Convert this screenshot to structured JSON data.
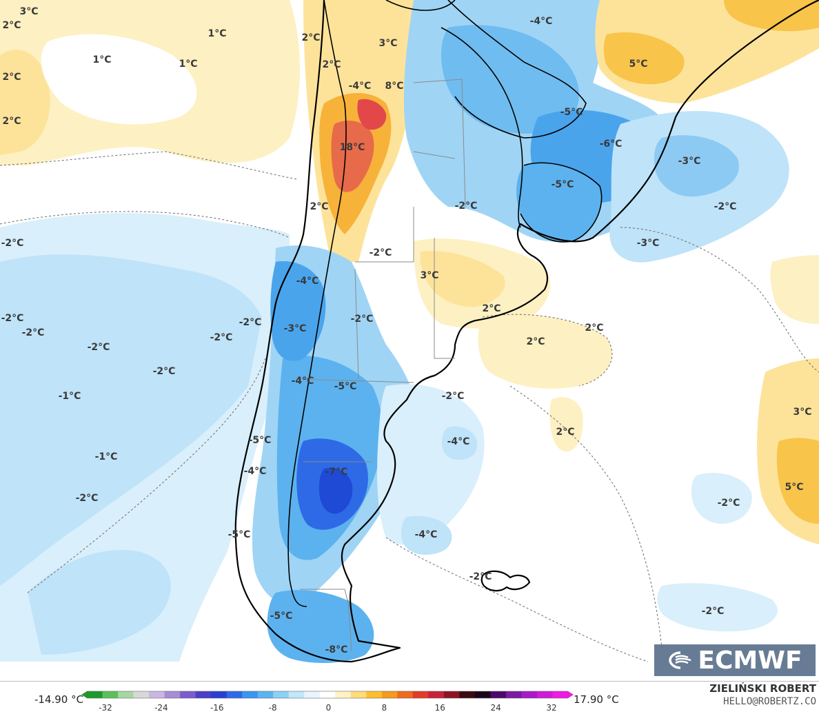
{
  "map": {
    "labels": [
      {
        "text": "3°C"
      },
      {
        "text": "2°C"
      },
      {
        "text": "1°C"
      },
      {
        "text": "1°C"
      },
      {
        "text": "1°C"
      },
      {
        "text": "2°C"
      },
      {
        "text": "2°C"
      },
      {
        "text": "2°C"
      },
      {
        "text": "3°C"
      },
      {
        "text": "2°C"
      },
      {
        "text": "-4°C"
      },
      {
        "text": "8°C"
      },
      {
        "text": "-4°C"
      },
      {
        "text": "5°C"
      },
      {
        "text": "-5°C"
      },
      {
        "text": "18°C"
      },
      {
        "text": "-6°C"
      },
      {
        "text": "-3°C"
      },
      {
        "text": "-5°C"
      },
      {
        "text": "2°C"
      },
      {
        "text": "-2°C"
      },
      {
        "text": "-2°C"
      },
      {
        "text": "-2°C"
      },
      {
        "text": "-3°C"
      },
      {
        "text": "-2°C"
      },
      {
        "text": "3°C"
      },
      {
        "text": "-4°C"
      },
      {
        "text": "2°C"
      },
      {
        "text": "-2°C"
      },
      {
        "text": "-2°C"
      },
      {
        "text": "-2°C"
      },
      {
        "text": "-2°C"
      },
      {
        "text": "-3°C"
      },
      {
        "text": "2°C"
      },
      {
        "text": "2°C"
      },
      {
        "text": "-2°C"
      },
      {
        "text": "-2°C"
      },
      {
        "text": "-4°C"
      },
      {
        "text": "-5°C"
      },
      {
        "text": "-2°C"
      },
      {
        "text": "-2°C"
      },
      {
        "text": "-1°C"
      },
      {
        "text": "3°C"
      },
      {
        "text": "-5°C"
      },
      {
        "text": "2°C"
      },
      {
        "text": "-4°C"
      },
      {
        "text": "-1°C"
      },
      {
        "text": "-4°C"
      },
      {
        "text": "-7°C"
      },
      {
        "text": "-2°C"
      },
      {
        "text": "5°C"
      },
      {
        "text": "-2°C"
      },
      {
        "text": "-5°C"
      },
      {
        "text": "-4°C"
      },
      {
        "text": "-2°C"
      },
      {
        "text": "-2°C"
      },
      {
        "text": "-5°C"
      },
      {
        "text": "-8°C"
      }
    ]
  },
  "logo": {
    "text": "ECMWF"
  },
  "colorbar": {
    "min_label": "-14.90 °C",
    "max_label": "17.90 °C",
    "ticks": [
      "-32",
      "-24",
      "-16",
      "-8",
      "0",
      "8",
      "16",
      "24",
      "32"
    ],
    "colors": [
      "#1e9a2c",
      "#5cc05a",
      "#a5d7a0",
      "#d8d8d8",
      "#c8b8e0",
      "#a78cd6",
      "#7b5ccc",
      "#4b3ec8",
      "#2a3fd2",
      "#2e6ae6",
      "#3a95f0",
      "#5ab4f2",
      "#8cd0f6",
      "#c2e6fa",
      "#e8f5fd",
      "#ffffff",
      "#fff2c4",
      "#ffdc7a",
      "#ffbe2e",
      "#f59a1e",
      "#ee6a1c",
      "#e23c28",
      "#c82238",
      "#8e1424",
      "#3a0a10",
      "#1a0418",
      "#4a0a6a",
      "#7a1aa0",
      "#a81ac8",
      "#d01ad8",
      "#f01ae6"
    ]
  },
  "author": {
    "name": "ZIELIŃSKI ROBERT",
    "email": "HELLO@ROBERTZ.CO"
  }
}
